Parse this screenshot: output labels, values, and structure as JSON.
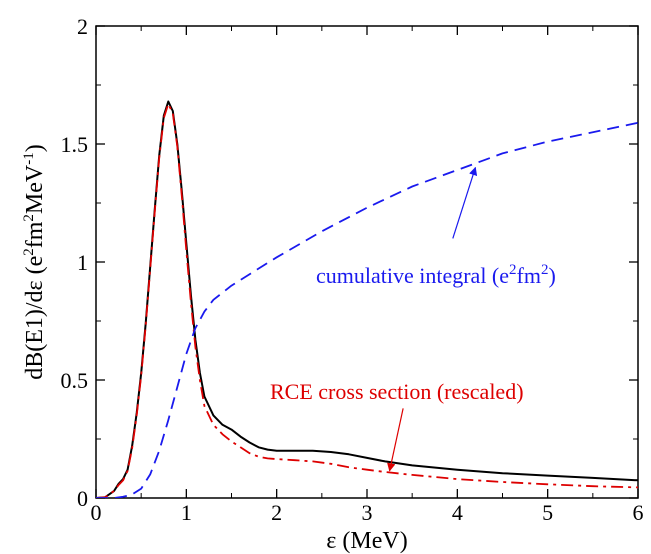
{
  "chart_data": {
    "type": "line",
    "title": "",
    "xlabel": "ε (MeV)",
    "ylabel": {
      "base": "dB(E1)/dε (e",
      "sup1": "2",
      "mid": "fm",
      "sup2": "2",
      "mid2": "MeV",
      "sup3": "-1",
      "end": ")"
    },
    "xlim": [
      0,
      6
    ],
    "ylim": [
      0,
      2
    ],
    "x_ticks": [
      "0",
      "1",
      "2",
      "3",
      "4",
      "5",
      "6"
    ],
    "y_ticks": [
      "0",
      "0.5",
      "1",
      "1.5",
      "2"
    ],
    "grid": false,
    "series": [
      {
        "id": "black-solid",
        "color": "#000000",
        "style": "solid",
        "points": [
          [
            0,
            0
          ],
          [
            0.1,
            0.003
          ],
          [
            0.2,
            0.03
          ],
          [
            0.25,
            0.06
          ],
          [
            0.3,
            0.08
          ],
          [
            0.35,
            0.12
          ],
          [
            0.4,
            0.22
          ],
          [
            0.45,
            0.36
          ],
          [
            0.5,
            0.53
          ],
          [
            0.55,
            0.74
          ],
          [
            0.6,
            0.98
          ],
          [
            0.65,
            1.22
          ],
          [
            0.7,
            1.45
          ],
          [
            0.75,
            1.62
          ],
          [
            0.8,
            1.68
          ],
          [
            0.85,
            1.64
          ],
          [
            0.9,
            1.5
          ],
          [
            0.95,
            1.3
          ],
          [
            1.0,
            1.08
          ],
          [
            1.05,
            0.86
          ],
          [
            1.1,
            0.67
          ],
          [
            1.15,
            0.53
          ],
          [
            1.2,
            0.43
          ],
          [
            1.3,
            0.35
          ],
          [
            1.4,
            0.31
          ],
          [
            1.5,
            0.29
          ],
          [
            1.6,
            0.26
          ],
          [
            1.7,
            0.235
          ],
          [
            1.8,
            0.215
          ],
          [
            1.9,
            0.205
          ],
          [
            2.0,
            0.2
          ],
          [
            2.2,
            0.2
          ],
          [
            2.4,
            0.2
          ],
          [
            2.6,
            0.195
          ],
          [
            2.8,
            0.185
          ],
          [
            3.0,
            0.17
          ],
          [
            3.2,
            0.155
          ],
          [
            3.5,
            0.138
          ],
          [
            4.0,
            0.12
          ],
          [
            4.5,
            0.105
          ],
          [
            5.0,
            0.095
          ],
          [
            5.5,
            0.085
          ],
          [
            6.0,
            0.075
          ]
        ]
      },
      {
        "id": "red-dashdot",
        "color": "#dd0000",
        "style": "dashdot",
        "points": [
          [
            0,
            0
          ],
          [
            0.1,
            0.003
          ],
          [
            0.2,
            0.03
          ],
          [
            0.25,
            0.055
          ],
          [
            0.3,
            0.075
          ],
          [
            0.35,
            0.115
          ],
          [
            0.4,
            0.21
          ],
          [
            0.45,
            0.35
          ],
          [
            0.5,
            0.52
          ],
          [
            0.55,
            0.73
          ],
          [
            0.6,
            0.97
          ],
          [
            0.65,
            1.21
          ],
          [
            0.7,
            1.44
          ],
          [
            0.75,
            1.61
          ],
          [
            0.8,
            1.67
          ],
          [
            0.85,
            1.63
          ],
          [
            0.9,
            1.49
          ],
          [
            0.95,
            1.28
          ],
          [
            1.0,
            1.05
          ],
          [
            1.05,
            0.83
          ],
          [
            1.1,
            0.64
          ],
          [
            1.15,
            0.5
          ],
          [
            1.2,
            0.39
          ],
          [
            1.3,
            0.31
          ],
          [
            1.4,
            0.27
          ],
          [
            1.5,
            0.24
          ],
          [
            1.6,
            0.215
          ],
          [
            1.7,
            0.19
          ],
          [
            1.8,
            0.175
          ],
          [
            1.9,
            0.168
          ],
          [
            2.0,
            0.165
          ],
          [
            2.2,
            0.16
          ],
          [
            2.4,
            0.155
          ],
          [
            2.6,
            0.145
          ],
          [
            2.8,
            0.13
          ],
          [
            3.0,
            0.12
          ],
          [
            3.2,
            0.11
          ],
          [
            3.5,
            0.098
          ],
          [
            4.0,
            0.08
          ],
          [
            4.5,
            0.068
          ],
          [
            5.0,
            0.058
          ],
          [
            5.5,
            0.05
          ],
          [
            6.0,
            0.045
          ]
        ]
      },
      {
        "id": "blue-dashed",
        "color": "#1a1aee",
        "style": "dashed",
        "points": [
          [
            0,
            0
          ],
          [
            0.2,
            0.0
          ],
          [
            0.3,
            0.005
          ],
          [
            0.4,
            0.015
          ],
          [
            0.5,
            0.04
          ],
          [
            0.6,
            0.1
          ],
          [
            0.7,
            0.2
          ],
          [
            0.8,
            0.33
          ],
          [
            0.9,
            0.47
          ],
          [
            1.0,
            0.61
          ],
          [
            1.1,
            0.72
          ],
          [
            1.2,
            0.79
          ],
          [
            1.3,
            0.84
          ],
          [
            1.5,
            0.9
          ],
          [
            1.75,
            0.96
          ],
          [
            2.0,
            1.02
          ],
          [
            2.5,
            1.13
          ],
          [
            3.0,
            1.23
          ],
          [
            3.5,
            1.32
          ],
          [
            4.0,
            1.39
          ],
          [
            4.5,
            1.46
          ],
          [
            5.0,
            1.51
          ],
          [
            5.5,
            1.55
          ],
          [
            6.0,
            1.59
          ]
        ]
      }
    ],
    "annotations": [
      {
        "id": "cumulative",
        "color": "#1a1aee",
        "text": "cumulative integral (e",
        "sup1": "2",
        "mid": "fm",
        "sup2": "2",
        "end": ")",
        "arrow_from": [
          3.95,
          1.1
        ],
        "arrow_to": [
          4.2,
          1.4
        ]
      },
      {
        "id": "rce",
        "color": "#dd0000",
        "text": "RCE cross section (rescaled)",
        "arrow_from": [
          3.4,
          0.38
        ],
        "arrow_to": [
          3.25,
          0.115
        ]
      }
    ]
  }
}
